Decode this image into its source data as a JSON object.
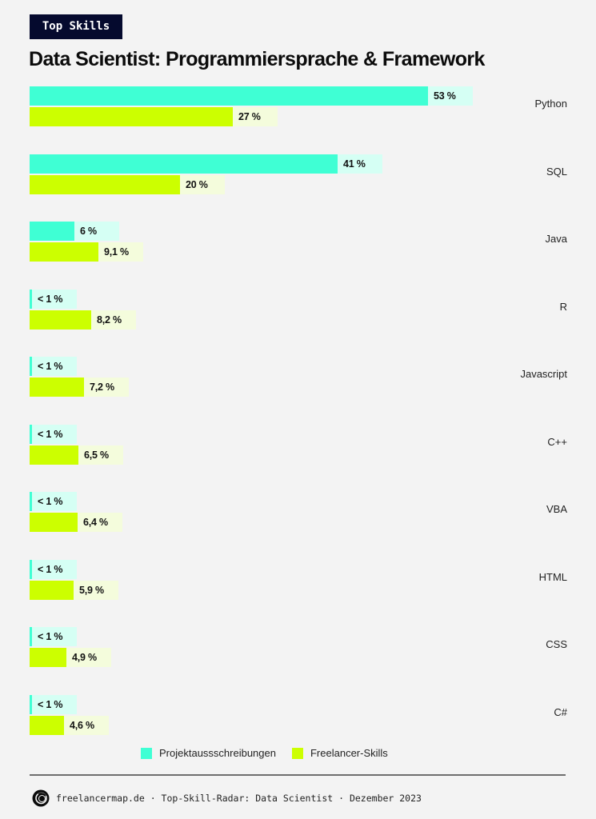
{
  "header": {
    "badge": "Top Skills",
    "title": "Data Scientist: Programmiersprache & Framework"
  },
  "legend": {
    "series_a": "Projektaussschreibungen",
    "series_b": "Freelancer-Skills"
  },
  "colors": {
    "series_a": "#3fffd4",
    "series_a_label_bg": "#d5fff4",
    "series_b": "#ccff00",
    "series_b_label_bg": "#f4fcdc",
    "badge_bg": "#050a2e"
  },
  "rows": [
    {
      "category": "Python",
      "a_label": "53 %",
      "b_label": "27 %"
    },
    {
      "category": "SQL",
      "a_label": "41 %",
      "b_label": "20 %"
    },
    {
      "category": "Java",
      "a_label": "6 %",
      "b_label": "9,1 %"
    },
    {
      "category": "R",
      "a_label": "< 1 %",
      "b_label": "8,2 %"
    },
    {
      "category": "Javascript",
      "a_label": "< 1 %",
      "b_label": "7,2 %"
    },
    {
      "category": "C++",
      "a_label": "< 1 %",
      "b_label": "6,5 %"
    },
    {
      "category": "VBA",
      "a_label": "< 1 %",
      "b_label": "6,4 %"
    },
    {
      "category": "HTML",
      "a_label": "< 1 %",
      "b_label": "5,9 %"
    },
    {
      "category": "CSS",
      "a_label": "< 1 %",
      "b_label": "4,9 %"
    },
    {
      "category": "C#",
      "a_label": "< 1 %",
      "b_label": "4,6 %"
    }
  ],
  "footer": {
    "text": "freelancermap.de · Top-Skill-Radar: Data Scientist · Dezember 2023",
    "logo_icon": "freelancermap-logo-icon"
  },
  "chart_data": {
    "type": "bar",
    "orientation": "horizontal",
    "title": "Data Scientist: Programmiersprache & Framework",
    "subtitle": "Top Skills",
    "categories": [
      "Python",
      "SQL",
      "Java",
      "R",
      "Javascript",
      "C++",
      "VBA",
      "HTML",
      "CSS",
      "C#"
    ],
    "series": [
      {
        "name": "Projektaussschreibungen",
        "values": [
          53,
          41,
          6,
          0.5,
          0.5,
          0.5,
          0.5,
          0.5,
          0.5,
          0.5
        ],
        "labels": [
          "53 %",
          "41 %",
          "6 %",
          "< 1 %",
          "< 1 %",
          "< 1 %",
          "< 1 %",
          "< 1 %",
          "< 1 %",
          "< 1 %"
        ]
      },
      {
        "name": "Freelancer-Skills",
        "values": [
          27,
          20,
          9.1,
          8.2,
          7.2,
          6.5,
          6.4,
          5.9,
          4.9,
          4.6
        ],
        "labels": [
          "27 %",
          "20 %",
          "9,1 %",
          "8,2 %",
          "7,2 %",
          "6,5 %",
          "6,4 %",
          "5,9 %",
          "4,9 %",
          "4,6 %"
        ]
      }
    ],
    "xlabel": "",
    "ylabel": "",
    "unit": "%",
    "grid": false,
    "legend_position": "bottom",
    "source": "freelancermap.de · Top-Skill-Radar: Data Scientist · Dezember 2023"
  }
}
